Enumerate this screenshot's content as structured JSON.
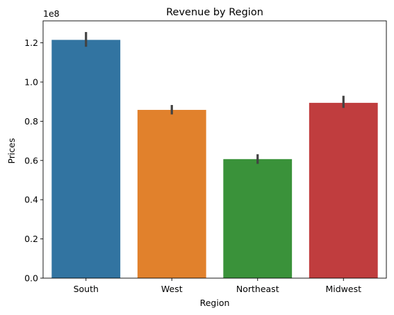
{
  "chart_data": {
    "type": "bar",
    "title": "Revenue by Region",
    "xlabel": "Region",
    "ylabel": "Prices",
    "y_offset_label": "1e8",
    "categories": [
      "South",
      "West",
      "Northeast",
      "Midwest"
    ],
    "values": [
      1.215,
      0.858,
      0.607,
      0.894
    ],
    "error_bars": [
      [
        1.18,
        1.255
      ],
      [
        0.835,
        0.883
      ],
      [
        0.583,
        0.632
      ],
      [
        0.868,
        0.93
      ]
    ],
    "y_ticks": [
      0.0,
      0.2,
      0.4,
      0.6,
      0.8,
      1.0,
      1.2
    ],
    "y_tick_labels": [
      "0.0",
      "0.2",
      "0.4",
      "0.6",
      "0.8",
      "1.0",
      "1.2"
    ],
    "ylim": [
      0,
      1.312
    ],
    "colors": [
      "#3274a1",
      "#e1812c",
      "#3a923a",
      "#c03d3e"
    ],
    "error_color": "#424242",
    "grid": false,
    "legend": "none"
  }
}
